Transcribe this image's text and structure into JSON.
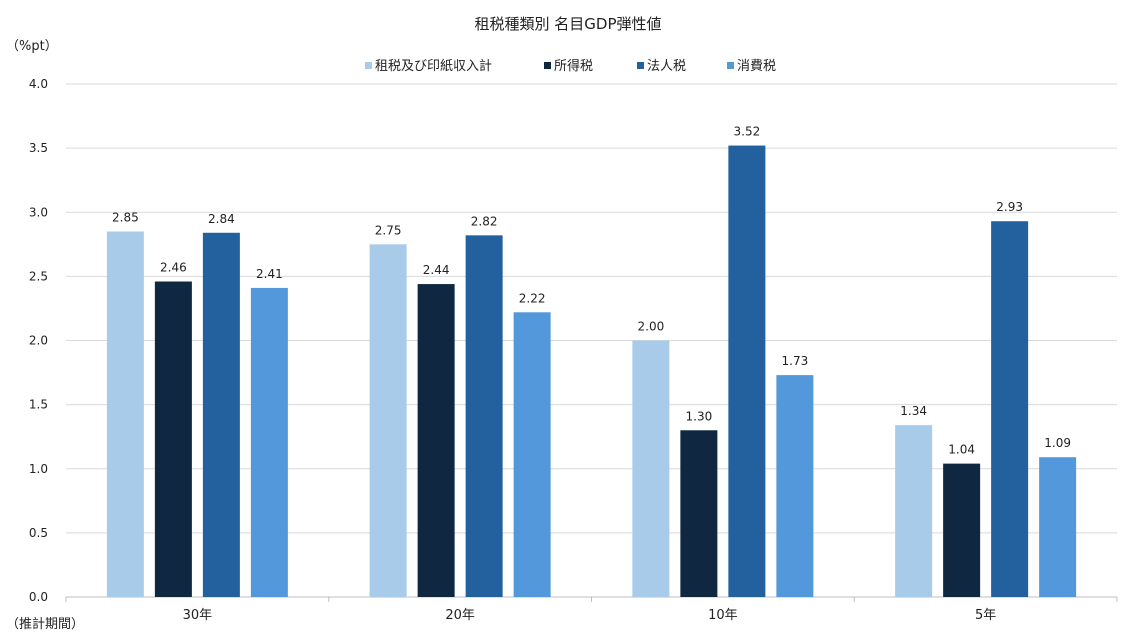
{
  "chart_data": {
    "type": "bar",
    "title": "租税種類別 名目GDP弾性値",
    "ylabel": "（%pt）",
    "xlabel": "（推計期間）",
    "categories": [
      "30年",
      "20年",
      "10年",
      "5年"
    ],
    "ylim": [
      0,
      4.0
    ],
    "yticks": [
      "0.0",
      "0.5",
      "1.0",
      "1.5",
      "2.0",
      "2.5",
      "3.0",
      "3.5",
      "4.0"
    ],
    "grid": true,
    "legend_position": "top",
    "series": [
      {
        "name": "租税及び印紙収入計",
        "color": "#a9cbea",
        "values": [
          2.85,
          2.75,
          2.0,
          1.34
        ],
        "labels": [
          "2.85",
          "2.75",
          "2.00",
          "1.34"
        ]
      },
      {
        "name": "所得税",
        "color": "#0f2741",
        "values": [
          2.46,
          2.44,
          1.3,
          1.04
        ],
        "labels": [
          "2.46",
          "2.44",
          "1.30",
          "1.04"
        ]
      },
      {
        "name": "法人税",
        "color": "#22609e",
        "values": [
          2.84,
          2.82,
          3.52,
          2.93
        ],
        "labels": [
          "2.84",
          "2.82",
          "3.52",
          "2.93"
        ]
      },
      {
        "name": "消費税",
        "color": "#5398db",
        "values": [
          2.41,
          2.22,
          1.73,
          1.09
        ],
        "labels": [
          "2.41",
          "2.22",
          "1.73",
          "1.09"
        ]
      }
    ]
  }
}
